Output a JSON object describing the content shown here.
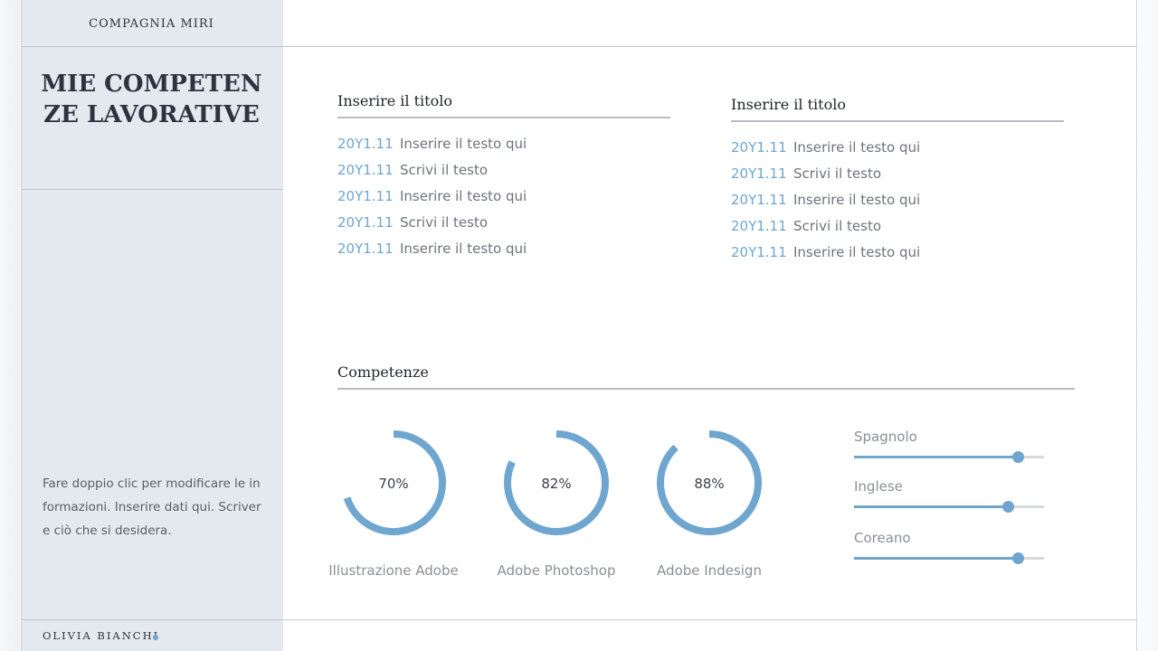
{
  "header": {
    "company": "COMPAGNIA MIRI",
    "title": "MIE COMPETENZE LAVORATIVE"
  },
  "sidebar": {
    "bio": "Fare doppio clic per modificare le informazioni. Inserire dati qui. Scrivere ciò che si desidera.",
    "person_name": "OLIVIA BIANCHI"
  },
  "sections": [
    {
      "title": "Inserire il titolo",
      "entries": [
        {
          "date": "20Y1.11",
          "text": "Inserire il testo qui"
        },
        {
          "date": "20Y1.11",
          "text": "Scrivi il testo"
        },
        {
          "date": "20Y1.11",
          "text": "Inserire il testo qui"
        },
        {
          "date": "20Y1.11",
          "text": "Scrivi il testo"
        },
        {
          "date": "20Y1.11",
          "text": "Inserire il testo qui"
        }
      ]
    },
    {
      "title": "Inserire il titolo",
      "entries": [
        {
          "date": "20Y1.11",
          "text": "Inserire il testo qui"
        },
        {
          "date": "20Y1.11",
          "text": "Scrivi il testo"
        },
        {
          "date": "20Y1.11",
          "text": "Inserire il testo qui"
        },
        {
          "date": "20Y1.11",
          "text": "Scrivi il testo"
        },
        {
          "date": "20Y1.11",
          "text": "Inserire il testo qui"
        }
      ]
    }
  ],
  "skills": {
    "title": "Competenze",
    "gauges": [
      {
        "label": "Illustrazione Adobe",
        "value": 70,
        "value_text": "70%"
      },
      {
        "label": "Adobe Photoshop",
        "value": 82,
        "value_text": "82%"
      },
      {
        "label": "Adobe Indesign",
        "value": 88,
        "value_text": "88%"
      }
    ],
    "languages": [
      {
        "name": "Spagnolo",
        "level": 0.86
      },
      {
        "name": "Inglese",
        "level": 0.81
      },
      {
        "name": "Coreano",
        "level": 0.86
      }
    ]
  },
  "colors": {
    "accent": "#6ea6cf",
    "sidebar_bg": "#e4e8ef",
    "text_dark": "#2d3440",
    "text_muted": "#6e737b"
  }
}
